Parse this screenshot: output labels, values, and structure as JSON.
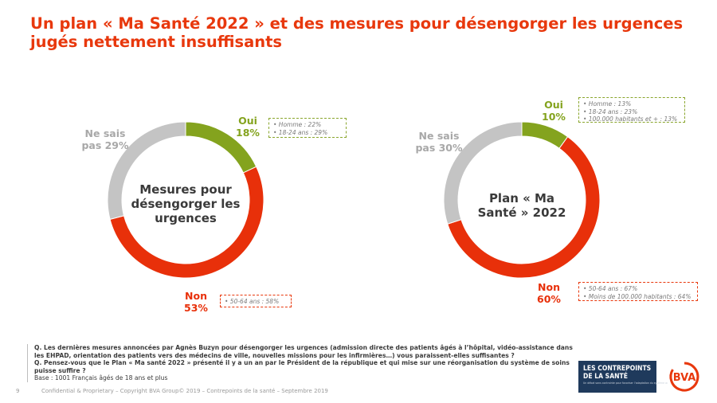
{
  "title": {
    "line1": "Un plan « Ma Santé 2022 » et des mesures pour désengorger les urgences",
    "line2": "jugés nettement insuffisants"
  },
  "colors": {
    "oui": "#84a31e",
    "non": "#e8300a",
    "nsp": "#c4c4c4",
    "title": "#e8380d"
  },
  "chart_data": [
    {
      "type": "pie",
      "variant": "donut",
      "center_label": [
        "Mesures pour",
        "désengorger les",
        "urgences"
      ],
      "slices": [
        {
          "label": "Oui",
          "value": 18,
          "display": "18%",
          "color": "#84a31e"
        },
        {
          "label": "Non",
          "value": 53,
          "display": "53%",
          "color": "#e8300a"
        },
        {
          "label": "Ne sais pas",
          "value": 29,
          "display": "pas 29%",
          "color": "#c4c4c4"
        }
      ],
      "annotations": {
        "oui": [
          "• Homme : 22%",
          "• 18-24 ans : 29%"
        ],
        "non": [
          "• 50-64 ans : 58%"
        ]
      }
    },
    {
      "type": "pie",
      "variant": "donut",
      "center_label": [
        "Plan « Ma",
        "Santé » 2022"
      ],
      "slices": [
        {
          "label": "Oui",
          "value": 10,
          "display": "10%",
          "color": "#84a31e"
        },
        {
          "label": "Non",
          "value": 60,
          "display": "60%",
          "color": "#e8300a"
        },
        {
          "label": "Ne sais pas",
          "value": 30,
          "display": "pas 30%",
          "color": "#c4c4c4"
        }
      ],
      "annotations": {
        "oui": [
          "• Homme : 13%",
          "• 18-24 ans : 23%",
          "• 100.000 habitants et + : 13%"
        ],
        "non": [
          "• 50-64 ans : 67%",
          "• Moins de 100.000 habitants : 64%"
        ]
      }
    }
  ],
  "labels": {
    "oui": "Oui",
    "non": "Non",
    "nsp_line1": "Ne sais"
  },
  "question": {
    "q1": "Q. Les dernières mesures annoncées par Agnès Buzyn pour désengorger les urgences (admission directe des patients âgés à l’hôpital, vidéo-assistance dans les EHPAD, orientation des patients vers des médecins de ville, nouvelles missions pour les infirmières…) vous paraissent-elles suffisantes ?",
    "q2": "Q. Pensez-vous que le Plan « Ma santé 2022 » présenté il y a un an par le Président de la république et qui mise sur une réorganisation du système de soins puisse suffire ?",
    "base": "Base : 1001 Français âgés de 18 ans et plus"
  },
  "footer": {
    "page": "9",
    "text": "Confidential & Proprietary – Copyright BVA Group© 2019 – Contrepoints de la santé – Septembre 2019"
  },
  "logos": {
    "contrepoints_line1": "LES CONTREPOINTS",
    "contrepoints_line2": "DE LA SANTÉ",
    "contrepoints_tag": "Un débat sans contrainte pour favoriser l’adaptation du système aux mutations sanitaires",
    "bva": "BVA"
  }
}
